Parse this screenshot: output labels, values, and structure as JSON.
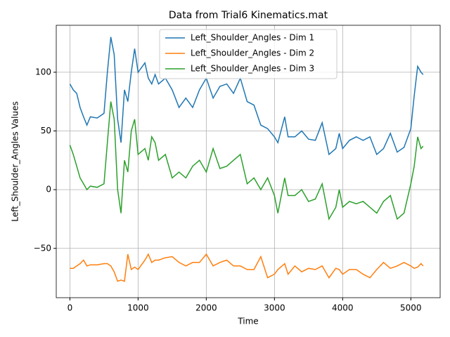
{
  "chart_data": {
    "type": "line",
    "title": "Data from Trial6 Kinematics.mat",
    "x_label": "Time",
    "y_label": "Left_Shoulder_Angles Values",
    "x": [
      0,
      50,
      100,
      150,
      200,
      250,
      300,
      400,
      500,
      550,
      600,
      650,
      700,
      750,
      800,
      850,
      900,
      950,
      1000,
      1100,
      1150,
      1200,
      1250,
      1300,
      1400,
      1500,
      1600,
      1700,
      1800,
      1900,
      2000,
      2100,
      2200,
      2300,
      2400,
      2500,
      2600,
      2700,
      2800,
      2900,
      3000,
      3050,
      3150,
      3200,
      3300,
      3400,
      3500,
      3600,
      3700,
      3800,
      3900,
      3950,
      4000,
      4100,
      4200,
      4300,
      4400,
      4500,
      4600,
      4700,
      4800,
      4900,
      5000,
      5050,
      5100,
      5150,
      5180
    ],
    "series": [
      {
        "name": "Left_Shoulder_Angles - Dim 1",
        "color": "#1f77b4",
        "values": [
          90,
          85,
          82,
          70,
          62,
          55,
          62,
          61,
          65,
          100,
          130,
          115,
          60,
          40,
          85,
          75,
          100,
          120,
          100,
          108,
          95,
          90,
          98,
          90,
          95,
          85,
          70,
          78,
          70,
          85,
          95,
          78,
          88,
          90,
          82,
          95,
          75,
          72,
          55,
          52,
          45,
          40,
          62,
          45,
          45,
          50,
          43,
          42,
          57,
          30,
          35,
          48,
          35,
          42,
          45,
          42,
          45,
          30,
          35,
          48,
          32,
          36,
          52,
          80,
          105,
          100,
          98
        ]
      },
      {
        "name": "Left_Shoulder_Angles - Dim 2",
        "color": "#ff7f0e",
        "values": [
          -67,
          -67,
          -65,
          -63,
          -60,
          -65,
          -64,
          -64,
          -63,
          -63,
          -65,
          -70,
          -78,
          -77,
          -78,
          -55,
          -68,
          -66,
          -68,
          -60,
          -55,
          -62,
          -60,
          -60,
          -58,
          -57,
          -62,
          -65,
          -62,
          -62,
          -55,
          -65,
          -62,
          -60,
          -65,
          -65,
          -68,
          -68,
          -57,
          -75,
          -72,
          -68,
          -63,
          -72,
          -65,
          -70,
          -67,
          -68,
          -65,
          -75,
          -67,
          -68,
          -72,
          -68,
          -68,
          -72,
          -75,
          -68,
          -62,
          -67,
          -65,
          -62,
          -65,
          -67,
          -66,
          -63,
          -65
        ]
      },
      {
        "name": "Left_Shoulder_Angles - Dim 3",
        "color": "#2ca02c",
        "values": [
          38,
          30,
          20,
          10,
          5,
          0,
          3,
          2,
          5,
          40,
          75,
          60,
          0,
          -20,
          25,
          15,
          50,
          60,
          30,
          35,
          25,
          45,
          40,
          25,
          30,
          10,
          15,
          10,
          20,
          25,
          15,
          35,
          18,
          20,
          25,
          30,
          5,
          10,
          0,
          10,
          -5,
          -20,
          10,
          -5,
          -5,
          0,
          -10,
          -8,
          5,
          -25,
          -15,
          0,
          -15,
          -10,
          -12,
          -10,
          -15,
          -20,
          -10,
          -5,
          -25,
          -20,
          5,
          20,
          45,
          35,
          37
        ]
      }
    ],
    "xlim": [
      -200,
      5430
    ],
    "ylim": [
      -92,
      140
    ],
    "xticks": [
      0,
      1000,
      2000,
      3000,
      4000,
      5000
    ],
    "yticks": [
      {
        "value": -50,
        "label": "−50"
      },
      0,
      50,
      100
    ],
    "grid": true,
    "legend": "upper center"
  }
}
